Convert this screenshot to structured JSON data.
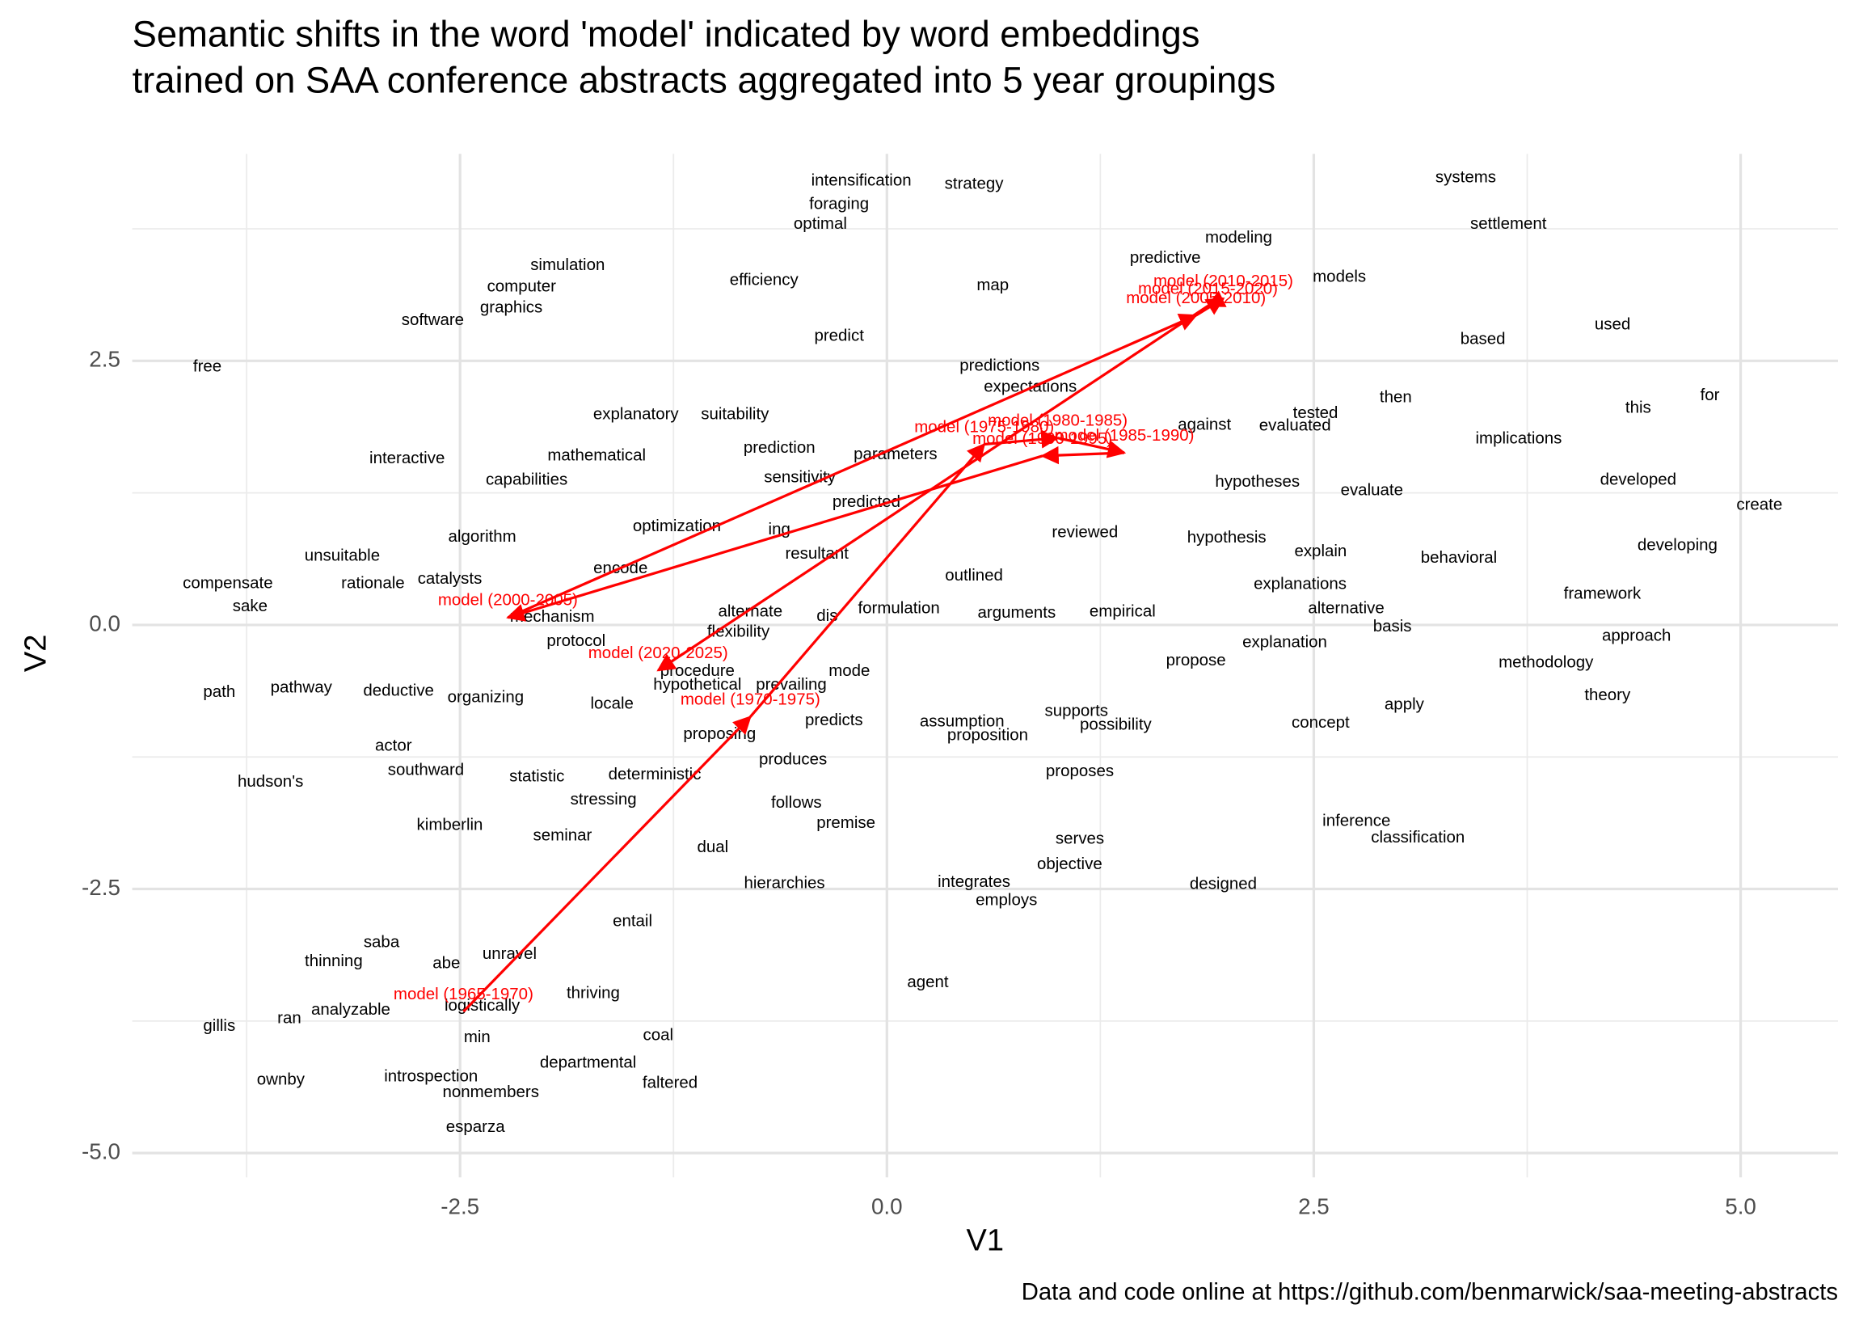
{
  "chart_data": {
    "type": "scatter",
    "title": [
      "Semantic shifts in the word 'model' indicated by word embeddings",
      "trained on SAA conference abstracts aggregated into 5 year groupings"
    ],
    "x_label": "V1",
    "y_label": "V2",
    "caption": "Data and code online at https://github.com/benmarwick/saa-meeting-abstracts",
    "xlim": [
      -4.42,
      5.57
    ],
    "ylim": [
      -5.23,
      4.46
    ],
    "xticks": [
      -2.5,
      {
        "value": 0,
        "label": "0.0"
      },
      2.5,
      {
        "value": 5,
        "label": "5.0"
      }
    ],
    "yticks": [
      {
        "value": -5,
        "label": "-5.0"
      },
      -2.5,
      {
        "value": 0,
        "label": "0.0"
      },
      2.5
    ],
    "xminorticks": [
      -3.75,
      -1.25,
      1.25,
      3.75
    ],
    "yminorticks": [
      -3.75,
      -1.25,
      1.25,
      3.75
    ],
    "grid": true,
    "words": {
      "color": "#000000",
      "labels": [
        "intensification",
        "strategy",
        "systems",
        "foraging",
        "optimal",
        "settlement",
        "modeling",
        "predictive",
        "simulation",
        "models",
        "efficiency",
        "map",
        "computer",
        "graphics",
        "software",
        "used",
        "predict",
        "based",
        "free",
        "predictions",
        "expectations",
        "for",
        "then",
        "this",
        "explanatory",
        "suitability",
        "tested",
        "against",
        "evaluated",
        "implications",
        "prediction",
        "parameters",
        "mathematical",
        "interactive",
        "sensitivity",
        "capabilities",
        "hypotheses",
        "developed",
        "evaluate",
        "predicted",
        "create",
        "optimization",
        "ing",
        "reviewed",
        "algorithm",
        "hypothesis",
        "developing",
        "explain",
        "resultant",
        "unsuitable",
        "behavioral",
        "encode",
        "outlined",
        "catalysts",
        "compensate",
        "rationale",
        "explanations",
        "framework",
        "sake",
        "alternative",
        "formulation",
        "alternate",
        "arguments",
        "empirical",
        "dis",
        "mechanism",
        "basis",
        "flexibility",
        "approach",
        "protocol",
        "explanation",
        "propose",
        "methodology",
        "procedure",
        "mode",
        "hypothetical",
        "prevailing",
        "path",
        "pathway",
        "deductive",
        "theory",
        "organizing",
        "locale",
        "apply",
        "supports",
        "predicts",
        "assumption",
        "concept",
        "possibility",
        "proposing",
        "proposition",
        "actor",
        "produces",
        "southward",
        "proposes",
        "deterministic",
        "statistic",
        "hudson's",
        "stressing",
        "follows",
        "inference",
        "premise",
        "kimberlin",
        "serves",
        "seminar",
        "classification",
        "dual",
        "objective",
        "hierarchies",
        "integrates",
        "designed",
        "employs",
        "entail",
        "saba",
        "unravel",
        "thinning",
        "abe",
        "agent",
        "thriving",
        "logistically",
        "analyzable",
        "ran",
        "gillis",
        "coal",
        "min",
        "departmental",
        "introspection",
        "ownby",
        "faltered",
        "nonmembers",
        "esparza"
      ],
      "x": [
        -0.15,
        0.51,
        3.39,
        -0.28,
        -0.39,
        3.64,
        2.06,
        1.63,
        -1.87,
        2.65,
        -0.72,
        0.62,
        -2.14,
        -2.2,
        -2.66,
        4.25,
        -0.28,
        3.49,
        -3.98,
        0.66,
        0.84,
        4.82,
        2.98,
        4.4,
        -1.47,
        -0.89,
        2.51,
        1.86,
        2.39,
        3.7,
        -0.63,
        0.05,
        -1.7,
        -2.81,
        -0.51,
        -2.11,
        2.17,
        4.4,
        2.84,
        -0.12,
        5.11,
        -1.23,
        -0.63,
        1.16,
        -2.37,
        1.99,
        4.63,
        2.54,
        -0.41,
        -3.19,
        3.35,
        -1.56,
        0.51,
        -2.56,
        -3.86,
        -3.01,
        2.42,
        4.19,
        -3.73,
        2.69,
        0.07,
        -0.8,
        0.76,
        1.38,
        -0.35,
        -1.96,
        2.96,
        -0.87,
        4.39,
        -1.82,
        2.33,
        1.81,
        3.86,
        -1.11,
        -0.22,
        -1.11,
        -0.56,
        -3.91,
        -3.43,
        -2.86,
        4.22,
        -2.35,
        -1.61,
        3.03,
        1.11,
        -0.31,
        0.44,
        2.54,
        1.34,
        -0.98,
        0.59,
        -2.89,
        -0.55,
        -2.7,
        1.13,
        -1.36,
        -2.05,
        -3.61,
        -1.66,
        -0.53,
        2.75,
        -0.24,
        -2.56,
        1.13,
        -1.9,
        3.11,
        -1.02,
        1.07,
        -0.6,
        0.51,
        1.97,
        0.7,
        -1.49,
        -2.96,
        -2.21,
        -3.24,
        -2.58,
        0.24,
        -1.72,
        -2.37,
        -3.14,
        -3.5,
        -3.91,
        -1.34,
        -2.4,
        -1.75,
        -2.67,
        -3.55,
        -1.27,
        -2.32,
        -2.41
      ],
      "y": [
        4.2,
        4.17,
        4.23,
        3.98,
        3.79,
        3.79,
        3.66,
        3.47,
        3.4,
        3.29,
        3.26,
        3.21,
        3.2,
        3.0,
        2.88,
        2.84,
        2.73,
        2.7,
        2.44,
        2.45,
        2.25,
        2.17,
        2.15,
        2.05,
        1.99,
        1.99,
        2.0,
        1.89,
        1.88,
        1.76,
        1.67,
        1.61,
        1.6,
        1.57,
        1.39,
        1.37,
        1.35,
        1.37,
        1.27,
        1.16,
        1.13,
        0.93,
        0.9,
        0.87,
        0.83,
        0.82,
        0.75,
        0.69,
        0.67,
        0.65,
        0.63,
        0.53,
        0.46,
        0.43,
        0.39,
        0.39,
        0.38,
        0.29,
        0.17,
        0.15,
        0.15,
        0.12,
        0.11,
        0.12,
        0.08,
        0.07,
        -0.02,
        -0.07,
        -0.11,
        -0.16,
        -0.17,
        -0.34,
        -0.36,
        -0.44,
        -0.44,
        -0.57,
        -0.57,
        -0.64,
        -0.6,
        -0.63,
        -0.67,
        -0.69,
        -0.75,
        -0.76,
        -0.82,
        -0.91,
        -0.92,
        -0.93,
        -0.95,
        -1.04,
        -1.05,
        -1.15,
        -1.28,
        -1.38,
        -1.39,
        -1.42,
        -1.44,
        -1.49,
        -1.66,
        -1.69,
        -1.86,
        -1.88,
        -1.9,
        -2.03,
        -2.0,
        -2.02,
        -2.11,
        -2.27,
        -2.45,
        -2.44,
        -2.46,
        -2.61,
        -2.81,
        -3.01,
        -3.12,
        -3.19,
        -3.21,
        -3.39,
        -3.49,
        -3.61,
        -3.65,
        -3.73,
        -3.8,
        -3.89,
        -3.91,
        -4.15,
        -4.28,
        -4.31,
        -4.34,
        -4.43,
        -4.76
      ]
    },
    "trajectory": {
      "color": "#ff0000",
      "labels": [
        "model (1965-1970)",
        "model (1970-1975)",
        "model (1975-1980)",
        "model (1980-1985)",
        "model (1985-1990)",
        "model (1990-1995)",
        "model (2000-2005)",
        "model (2005-2010)",
        "model (2010-2015)",
        "model (2015-2020)",
        "model (2020-2025)"
      ],
      "x": [
        -2.48,
        -0.8,
        0.57,
        1.0,
        1.39,
        0.91,
        -2.22,
        1.81,
        1.97,
        1.88,
        -1.34
      ],
      "y": [
        -3.66,
        -0.87,
        1.71,
        1.77,
        1.63,
        1.6,
        0.07,
        2.93,
        3.09,
        3.02,
        -0.43
      ]
    }
  }
}
